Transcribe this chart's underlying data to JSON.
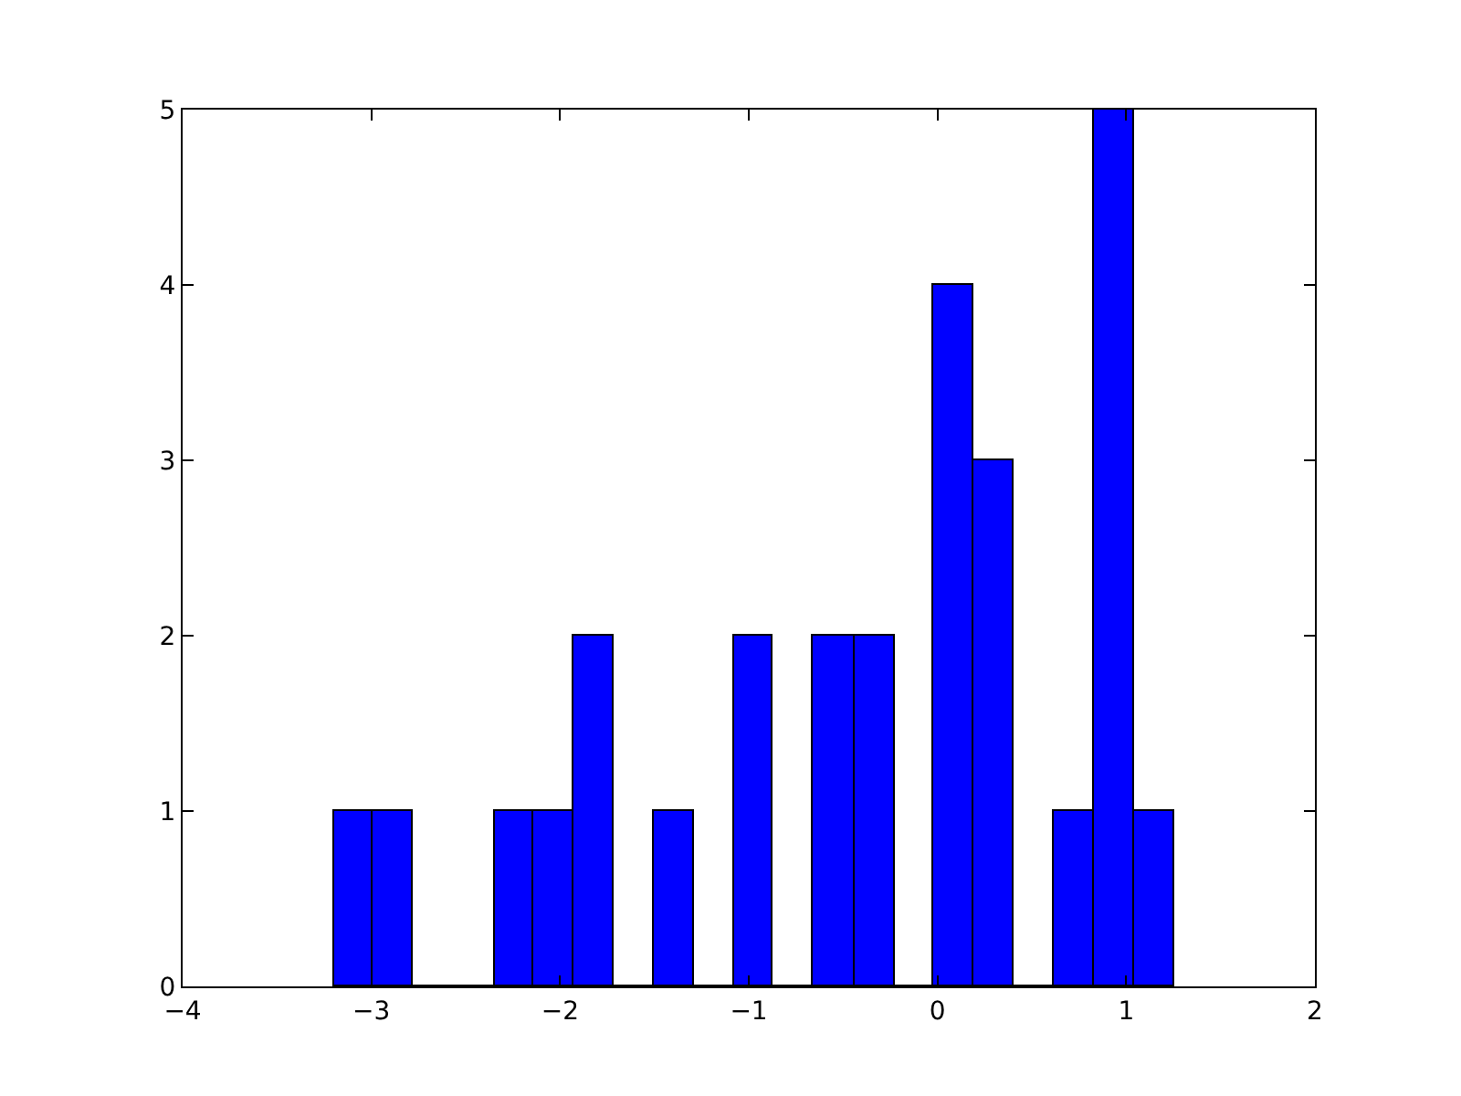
{
  "chart_data": {
    "type": "histogram",
    "bins": [
      -3.2,
      -2.99,
      -2.78,
      -2.35,
      -2.14,
      -1.93,
      -1.72,
      -1.5,
      -1.29,
      -1.08,
      -0.87,
      -0.66,
      -0.44,
      -0.23,
      -0.02,
      0.19,
      0.4,
      0.62,
      0.83,
      1.04,
      1.25
    ],
    "values": [
      1,
      1,
      0,
      1,
      1,
      2,
      0,
      1,
      0,
      2,
      0,
      2,
      2,
      0,
      4,
      3,
      0,
      1,
      5,
      1
    ],
    "color": "#0000ff",
    "xlim": [
      -4,
      2
    ],
    "xticks": [
      {
        "value": -4,
        "label": "−4"
      },
      {
        "value": -3,
        "label": "−3"
      },
      {
        "value": -2,
        "label": "−2"
      },
      {
        "value": -1,
        "label": "−1"
      },
      0,
      1,
      2
    ],
    "ylim": [
      0,
      5
    ],
    "yticks": [
      0,
      1,
      2,
      3,
      4,
      5
    ]
  }
}
